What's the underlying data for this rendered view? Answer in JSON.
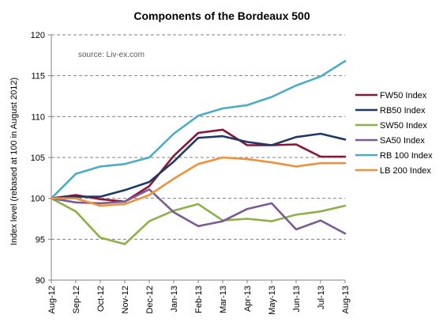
{
  "chart_data": {
    "type": "line",
    "title": "Components of the Bordeaux 500",
    "annotation": "source: Liv-ex.com",
    "ylabel": "Index level (rebased at 100 in August 2012)",
    "xlabel": "",
    "ylim": [
      90,
      120
    ],
    "yticks": [
      90,
      95,
      100,
      105,
      110,
      115,
      120
    ],
    "grid": true,
    "legend_position": "right",
    "categories": [
      "Aug-12",
      "Sep-12",
      "Oct-12",
      "Nov-12",
      "Dec-12",
      "Jan-13",
      "Feb-13",
      "Mar-13",
      "Apr-13",
      "May-13",
      "Jun-13",
      "Jul-13",
      "Aug-13"
    ],
    "series": [
      {
        "name": "FW50 Index",
        "color": "#8B1538",
        "values": [
          100,
          100.4,
          99.9,
          99.6,
          101.5,
          105.2,
          108.0,
          108.4,
          106.5,
          106.5,
          106.6,
          105.1,
          105.1
        ]
      },
      {
        "name": "RB50 Index",
        "color": "#1F3864",
        "values": [
          100,
          100.2,
          100.2,
          101.0,
          102.0,
          104.5,
          107.4,
          107.6,
          106.9,
          106.5,
          107.5,
          107.9,
          107.2
        ]
      },
      {
        "name": "SW50 Index",
        "color": "#8DB04A",
        "values": [
          100,
          98.4,
          95.2,
          94.4,
          97.2,
          98.5,
          99.3,
          97.3,
          97.5,
          97.2,
          98.0,
          98.4,
          99.1
        ]
      },
      {
        "name": "SA50 Index",
        "color": "#7B5B94",
        "values": [
          100,
          99.5,
          99.4,
          99.6,
          101.1,
          98.3,
          96.6,
          97.2,
          98.7,
          99.4,
          96.2,
          97.3,
          95.7
        ]
      },
      {
        "name": "RB 100 Index",
        "color": "#4BACC6",
        "values": [
          100,
          103.0,
          103.9,
          104.2,
          105.0,
          107.9,
          110.1,
          111.0,
          111.4,
          112.4,
          113.8,
          114.9,
          116.8
        ]
      },
      {
        "name": "LB 200 Index",
        "color": "#F0913A",
        "values": [
          100,
          100.0,
          99.1,
          99.3,
          100.4,
          102.4,
          104.2,
          105.0,
          104.8,
          104.4,
          103.9,
          104.3,
          104.3
        ]
      }
    ]
  }
}
